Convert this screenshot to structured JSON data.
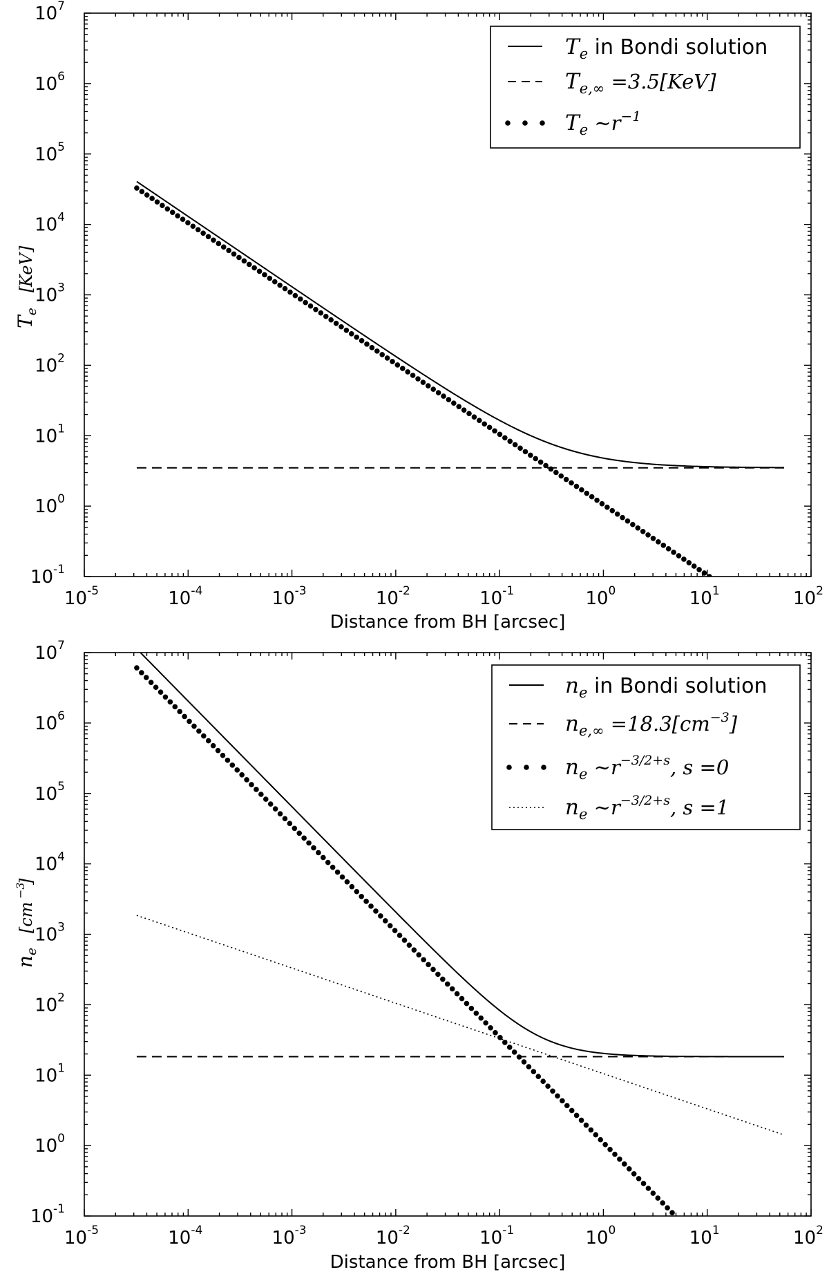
{
  "chart_data": [
    {
      "type": "line",
      "log_x": true,
      "log_y": true,
      "xlim": [
        1e-05,
        100
      ],
      "ylim": [
        0.1,
        10000000
      ],
      "xlabel": "Distance from BH [arcsec]",
      "ylabel": "T_e  [KeV]",
      "x_ticks": [
        {
          "base": "10",
          "exp": "-5"
        },
        {
          "base": "10",
          "exp": "-4"
        },
        {
          "base": "10",
          "exp": "-3"
        },
        {
          "base": "10",
          "exp": "-2"
        },
        {
          "base": "10",
          "exp": "-1"
        },
        {
          "base": "10",
          "exp": "0"
        },
        {
          "base": "10",
          "exp": "1"
        },
        {
          "base": "10",
          "exp": "2"
        }
      ],
      "y_ticks": [
        {
          "base": "10",
          "exp": "-1"
        },
        {
          "base": "10",
          "exp": "0"
        },
        {
          "base": "10",
          "exp": "1"
        },
        {
          "base": "10",
          "exp": "2"
        },
        {
          "base": "10",
          "exp": "3"
        },
        {
          "base": "10",
          "exp": "4"
        },
        {
          "base": "10",
          "exp": "5"
        },
        {
          "base": "10",
          "exp": "6"
        },
        {
          "base": "10",
          "exp": "7"
        }
      ],
      "legend_position": "top-right",
      "grid": false,
      "series": [
        {
          "name": "T_e in Bondi solution",
          "style": "solid",
          "model": "bondi",
          "asymptote": 3.5,
          "coefficient": 1.3,
          "power": -1,
          "x_range": [
            3.2e-05,
            55
          ]
        },
        {
          "name": "T_e,∞ =3.5[KeV]",
          "style": "dashed",
          "model": "constant",
          "asymptote": 3.5,
          "x_range": [
            3.2e-05,
            55
          ]
        },
        {
          "name": "T_e ∼ r^-1",
          "style": "dots",
          "model": "power",
          "coefficient": 1.05,
          "power": -1,
          "x_range": [
            3.2e-05,
            10.5
          ]
        }
      ]
    },
    {
      "type": "line",
      "log_x": true,
      "log_y": true,
      "xlim": [
        1e-05,
        100
      ],
      "ylim": [
        0.1,
        10000000
      ],
      "xlabel": "Distance from BH [arcsec]",
      "ylabel": "n_e  [cm^-3]",
      "x_ticks": [
        {
          "base": "10",
          "exp": "-5"
        },
        {
          "base": "10",
          "exp": "-4"
        },
        {
          "base": "10",
          "exp": "-3"
        },
        {
          "base": "10",
          "exp": "-2"
        },
        {
          "base": "10",
          "exp": "-1"
        },
        {
          "base": "10",
          "exp": "0"
        },
        {
          "base": "10",
          "exp": "1"
        },
        {
          "base": "10",
          "exp": "2"
        }
      ],
      "y_ticks": [
        {
          "base": "10",
          "exp": "-1"
        },
        {
          "base": "10",
          "exp": "0"
        },
        {
          "base": "10",
          "exp": "1"
        },
        {
          "base": "10",
          "exp": "2"
        },
        {
          "base": "10",
          "exp": "3"
        },
        {
          "base": "10",
          "exp": "4"
        },
        {
          "base": "10",
          "exp": "5"
        },
        {
          "base": "10",
          "exp": "6"
        },
        {
          "base": "10",
          "exp": "7"
        }
      ],
      "legend_position": "top-right",
      "grid": false,
      "series": [
        {
          "name": "n_e in Bondi solution",
          "style": "solid",
          "model": "bondi",
          "asymptote": 18.3,
          "coefficient": 2.05,
          "power": -1.5,
          "x_range": [
            3.2e-05,
            55
          ]
        },
        {
          "name": "n_e,∞ =18.3[cm^-3]",
          "style": "dashed",
          "model": "constant",
          "asymptote": 18.3,
          "x_range": [
            3.2e-05,
            55
          ]
        },
        {
          "name": "n_e ∼ r^(-3/2+s), s =0",
          "style": "dots",
          "model": "power",
          "coefficient": 1.1,
          "power": -1.5,
          "x_range": [
            3.2e-05,
            4.6
          ]
        },
        {
          "name": "n_e ∼ r^(-3/2+s), s =1",
          "style": "dotted",
          "model": "power",
          "coefficient": 10.5,
          "power": -0.5,
          "x_range": [
            3.2e-05,
            55
          ]
        }
      ]
    }
  ]
}
